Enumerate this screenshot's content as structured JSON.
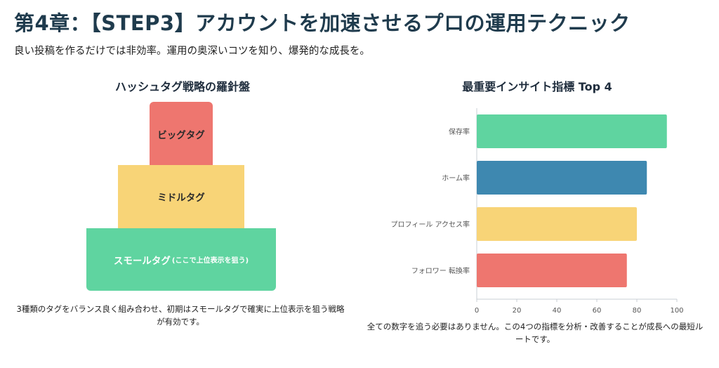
{
  "header": {
    "title": "第4章：【STEP3】アカウントを加速させるプロの運用テクニック",
    "subtitle": "良い投稿を作るだけでは非効率。運用の奥深いコツを知り、爆発的な成長を。"
  },
  "hashtag_panel": {
    "title": "ハッシュタグ戦略の羅針盤",
    "levels": {
      "big": "ビッグタグ",
      "middle": "ミドルタグ",
      "small": "スモールタグ",
      "small_note": "(ここで上位表示を狙う)"
    },
    "colors": {
      "big": "#ee766f",
      "middle": "#f8d477",
      "small": "#5fd4a0"
    },
    "caption": "3種類のタグをバランス良く組み合わせ、初期はスモールタグで確実に上位表示を狙う戦略が有効です。"
  },
  "insight_panel": {
    "title": "最重要インサイト指標 Top 4",
    "caption": "全ての数字を追う必要はありません。この4つの指標を分析・改善することが成長への最短ルートです。"
  },
  "chart_data": {
    "type": "bar",
    "orientation": "horizontal",
    "title": "最重要インサイト指標 Top 4",
    "categories": [
      "保存率",
      "ホーム率",
      "プロフィール アクセス率",
      "フォロワー 転換率"
    ],
    "values": [
      95,
      85,
      80,
      75
    ],
    "colors": [
      "#5fd4a0",
      "#3e88b0",
      "#f8d477",
      "#ee766f"
    ],
    "xlim": [
      0,
      100
    ],
    "xticks": [
      0,
      20,
      40,
      60,
      80,
      100
    ],
    "grid": false,
    "legend": "none"
  }
}
